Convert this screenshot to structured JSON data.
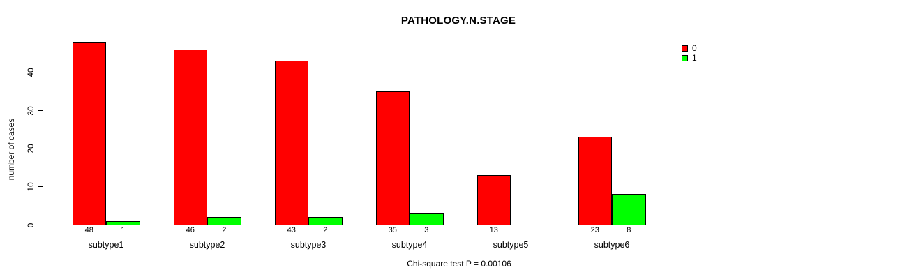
{
  "chart_data": {
    "type": "bar",
    "title": "PATHOLOGY.N.STAGE",
    "xlabel": "",
    "ylabel": "number of cases",
    "categories": [
      "subtype1",
      "subtype2",
      "subtype3",
      "subtype4",
      "subtype5",
      "subtype6"
    ],
    "series": [
      {
        "name": "0",
        "color": "#ff0000",
        "values": [
          48,
          46,
          43,
          35,
          13,
          23
        ]
      },
      {
        "name": "1",
        "color": "#00ff00",
        "values": [
          1,
          2,
          2,
          3,
          0,
          8
        ]
      }
    ],
    "bar_value_labels": [
      [
        "48",
        "46",
        "43",
        "35",
        "13",
        "23"
      ],
      [
        "1",
        "2",
        "2",
        "3",
        "",
        "8"
      ]
    ],
    "yticks": [
      0,
      10,
      20,
      30,
      40
    ],
    "ylim": [
      0,
      48
    ],
    "grid": false,
    "legend_position": "top-right",
    "annotation": "Chi-square test P = 0.00106"
  }
}
